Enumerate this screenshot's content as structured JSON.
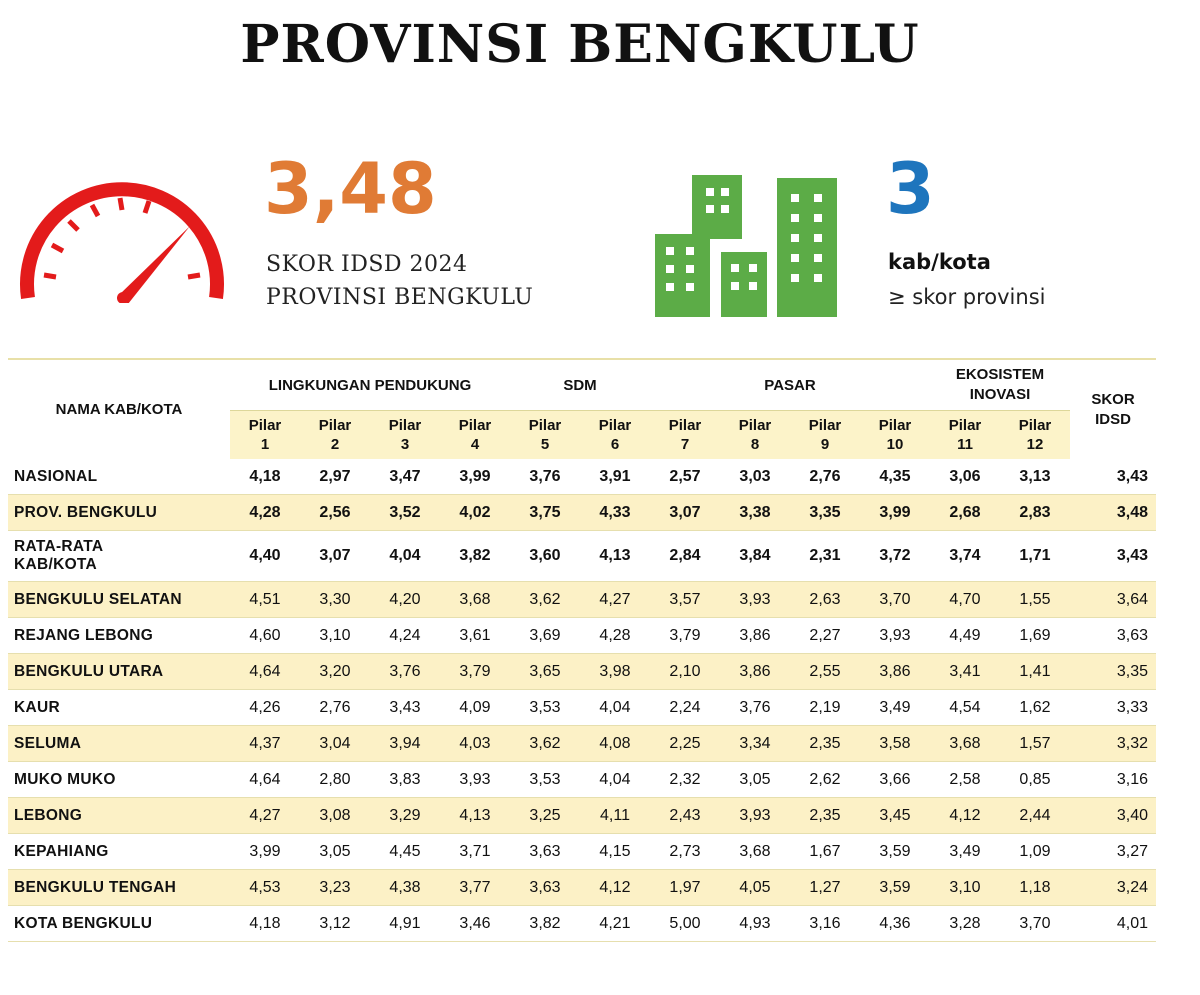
{
  "title": "PROVINSI BENGKULU",
  "score": {
    "value": "3,48",
    "label_line1": "SKOR IDSD 2024",
    "label_line2": "PROVINSI BENGKULU",
    "color": "#e07b35"
  },
  "count": {
    "value": "3",
    "label_line1": "kab/kota",
    "label_line2": "≥ skor provinsi",
    "color": "#1e75bd"
  },
  "icons": {
    "gauge": "speedometer-icon",
    "buildings": "buildings-icon"
  },
  "table": {
    "name_header": "NAMA KAB/KOTA",
    "groups": [
      "LINGKUNGAN PENDUKUNG",
      "SDM",
      "PASAR",
      "EKOSISTEM INOVASI"
    ],
    "skor_header_1": "SKOR",
    "skor_header_2": "IDSD",
    "pillars": [
      {
        "l1": "Pilar",
        "l2": "1"
      },
      {
        "l1": "Pilar",
        "l2": "2"
      },
      {
        "l1": "Pilar",
        "l2": "3"
      },
      {
        "l1": "Pilar",
        "l2": "4"
      },
      {
        "l1": "Pilar",
        "l2": "5"
      },
      {
        "l1": "Pilar",
        "l2": "6"
      },
      {
        "l1": "Pilar",
        "l2": "7"
      },
      {
        "l1": "Pilar",
        "l2": "8"
      },
      {
        "l1": "Pilar",
        "l2": "9"
      },
      {
        "l1": "Pilar",
        "l2": "10"
      },
      {
        "l1": "Pilar",
        "l2": "11"
      },
      {
        "l1": "Pilar",
        "l2": "12"
      }
    ],
    "rows": [
      {
        "name": "NASIONAL",
        "values": [
          "4,18",
          "2,97",
          "3,47",
          "3,99",
          "3,76",
          "3,91",
          "2,57",
          "3,03",
          "2,76",
          "4,35",
          "3,06",
          "3,13"
        ],
        "skor": "3,43"
      },
      {
        "name": "PROV. BENGKULU",
        "values": [
          "4,28",
          "2,56",
          "3,52",
          "4,02",
          "3,75",
          "4,33",
          "3,07",
          "3,38",
          "3,35",
          "3,99",
          "2,68",
          "2,83"
        ],
        "skor": "3,48"
      },
      {
        "name_line1": "RATA-RATA",
        "name_line2": "KAB/KOTA",
        "values": [
          "4,40",
          "3,07",
          "4,04",
          "3,82",
          "3,60",
          "4,13",
          "2,84",
          "3,84",
          "2,31",
          "3,72",
          "3,74",
          "1,71"
        ],
        "skor": "3,43"
      },
      {
        "name": "BENGKULU SELATAN",
        "values": [
          "4,51",
          "3,30",
          "4,20",
          "3,68",
          "3,62",
          "4,27",
          "3,57",
          "3,93",
          "2,63",
          "3,70",
          "4,70",
          "1,55"
        ],
        "skor": "3,64"
      },
      {
        "name": "REJANG LEBONG",
        "values": [
          "4,60",
          "3,10",
          "4,24",
          "3,61",
          "3,69",
          "4,28",
          "3,79",
          "3,86",
          "2,27",
          "3,93",
          "4,49",
          "1,69"
        ],
        "skor": "3,63"
      },
      {
        "name": "BENGKULU UTARA",
        "values": [
          "4,64",
          "3,20",
          "3,76",
          "3,79",
          "3,65",
          "3,98",
          "2,10",
          "3,86",
          "2,55",
          "3,86",
          "3,41",
          "1,41"
        ],
        "skor": "3,35"
      },
      {
        "name": "KAUR",
        "values": [
          "4,26",
          "2,76",
          "3,43",
          "4,09",
          "3,53",
          "4,04",
          "2,24",
          "3,76",
          "2,19",
          "3,49",
          "4,54",
          "1,62"
        ],
        "skor": "3,33"
      },
      {
        "name": "SELUMA",
        "values": [
          "4,37",
          "3,04",
          "3,94",
          "4,03",
          "3,62",
          "4,08",
          "2,25",
          "3,34",
          "2,35",
          "3,58",
          "3,68",
          "1,57"
        ],
        "skor": "3,32"
      },
      {
        "name": "MUKO MUKO",
        "values": [
          "4,64",
          "2,80",
          "3,83",
          "3,93",
          "3,53",
          "4,04",
          "2,32",
          "3,05",
          "2,62",
          "3,66",
          "2,58",
          "0,85"
        ],
        "skor": "3,16"
      },
      {
        "name": "LEBONG",
        "values": [
          "4,27",
          "3,08",
          "3,29",
          "4,13",
          "3,25",
          "4,11",
          "2,43",
          "3,93",
          "2,35",
          "3,45",
          "4,12",
          "2,44"
        ],
        "skor": "3,40"
      },
      {
        "name": "KEPAHIANG",
        "values": [
          "3,99",
          "3,05",
          "4,45",
          "3,71",
          "3,63",
          "4,15",
          "2,73",
          "3,68",
          "1,67",
          "3,59",
          "3,49",
          "1,09"
        ],
        "skor": "3,27"
      },
      {
        "name": "BENGKULU TENGAH",
        "values": [
          "4,53",
          "3,23",
          "4,38",
          "3,77",
          "3,63",
          "4,12",
          "1,97",
          "4,05",
          "1,27",
          "3,59",
          "3,10",
          "1,18"
        ],
        "skor": "3,24"
      },
      {
        "name": "KOTA BENGKULU",
        "values": [
          "4,18",
          "3,12",
          "4,91",
          "3,46",
          "3,82",
          "4,21",
          "5,00",
          "4,93",
          "3,16",
          "4,36",
          "3,28",
          "3,70"
        ],
        "skor": "4,01"
      }
    ]
  }
}
